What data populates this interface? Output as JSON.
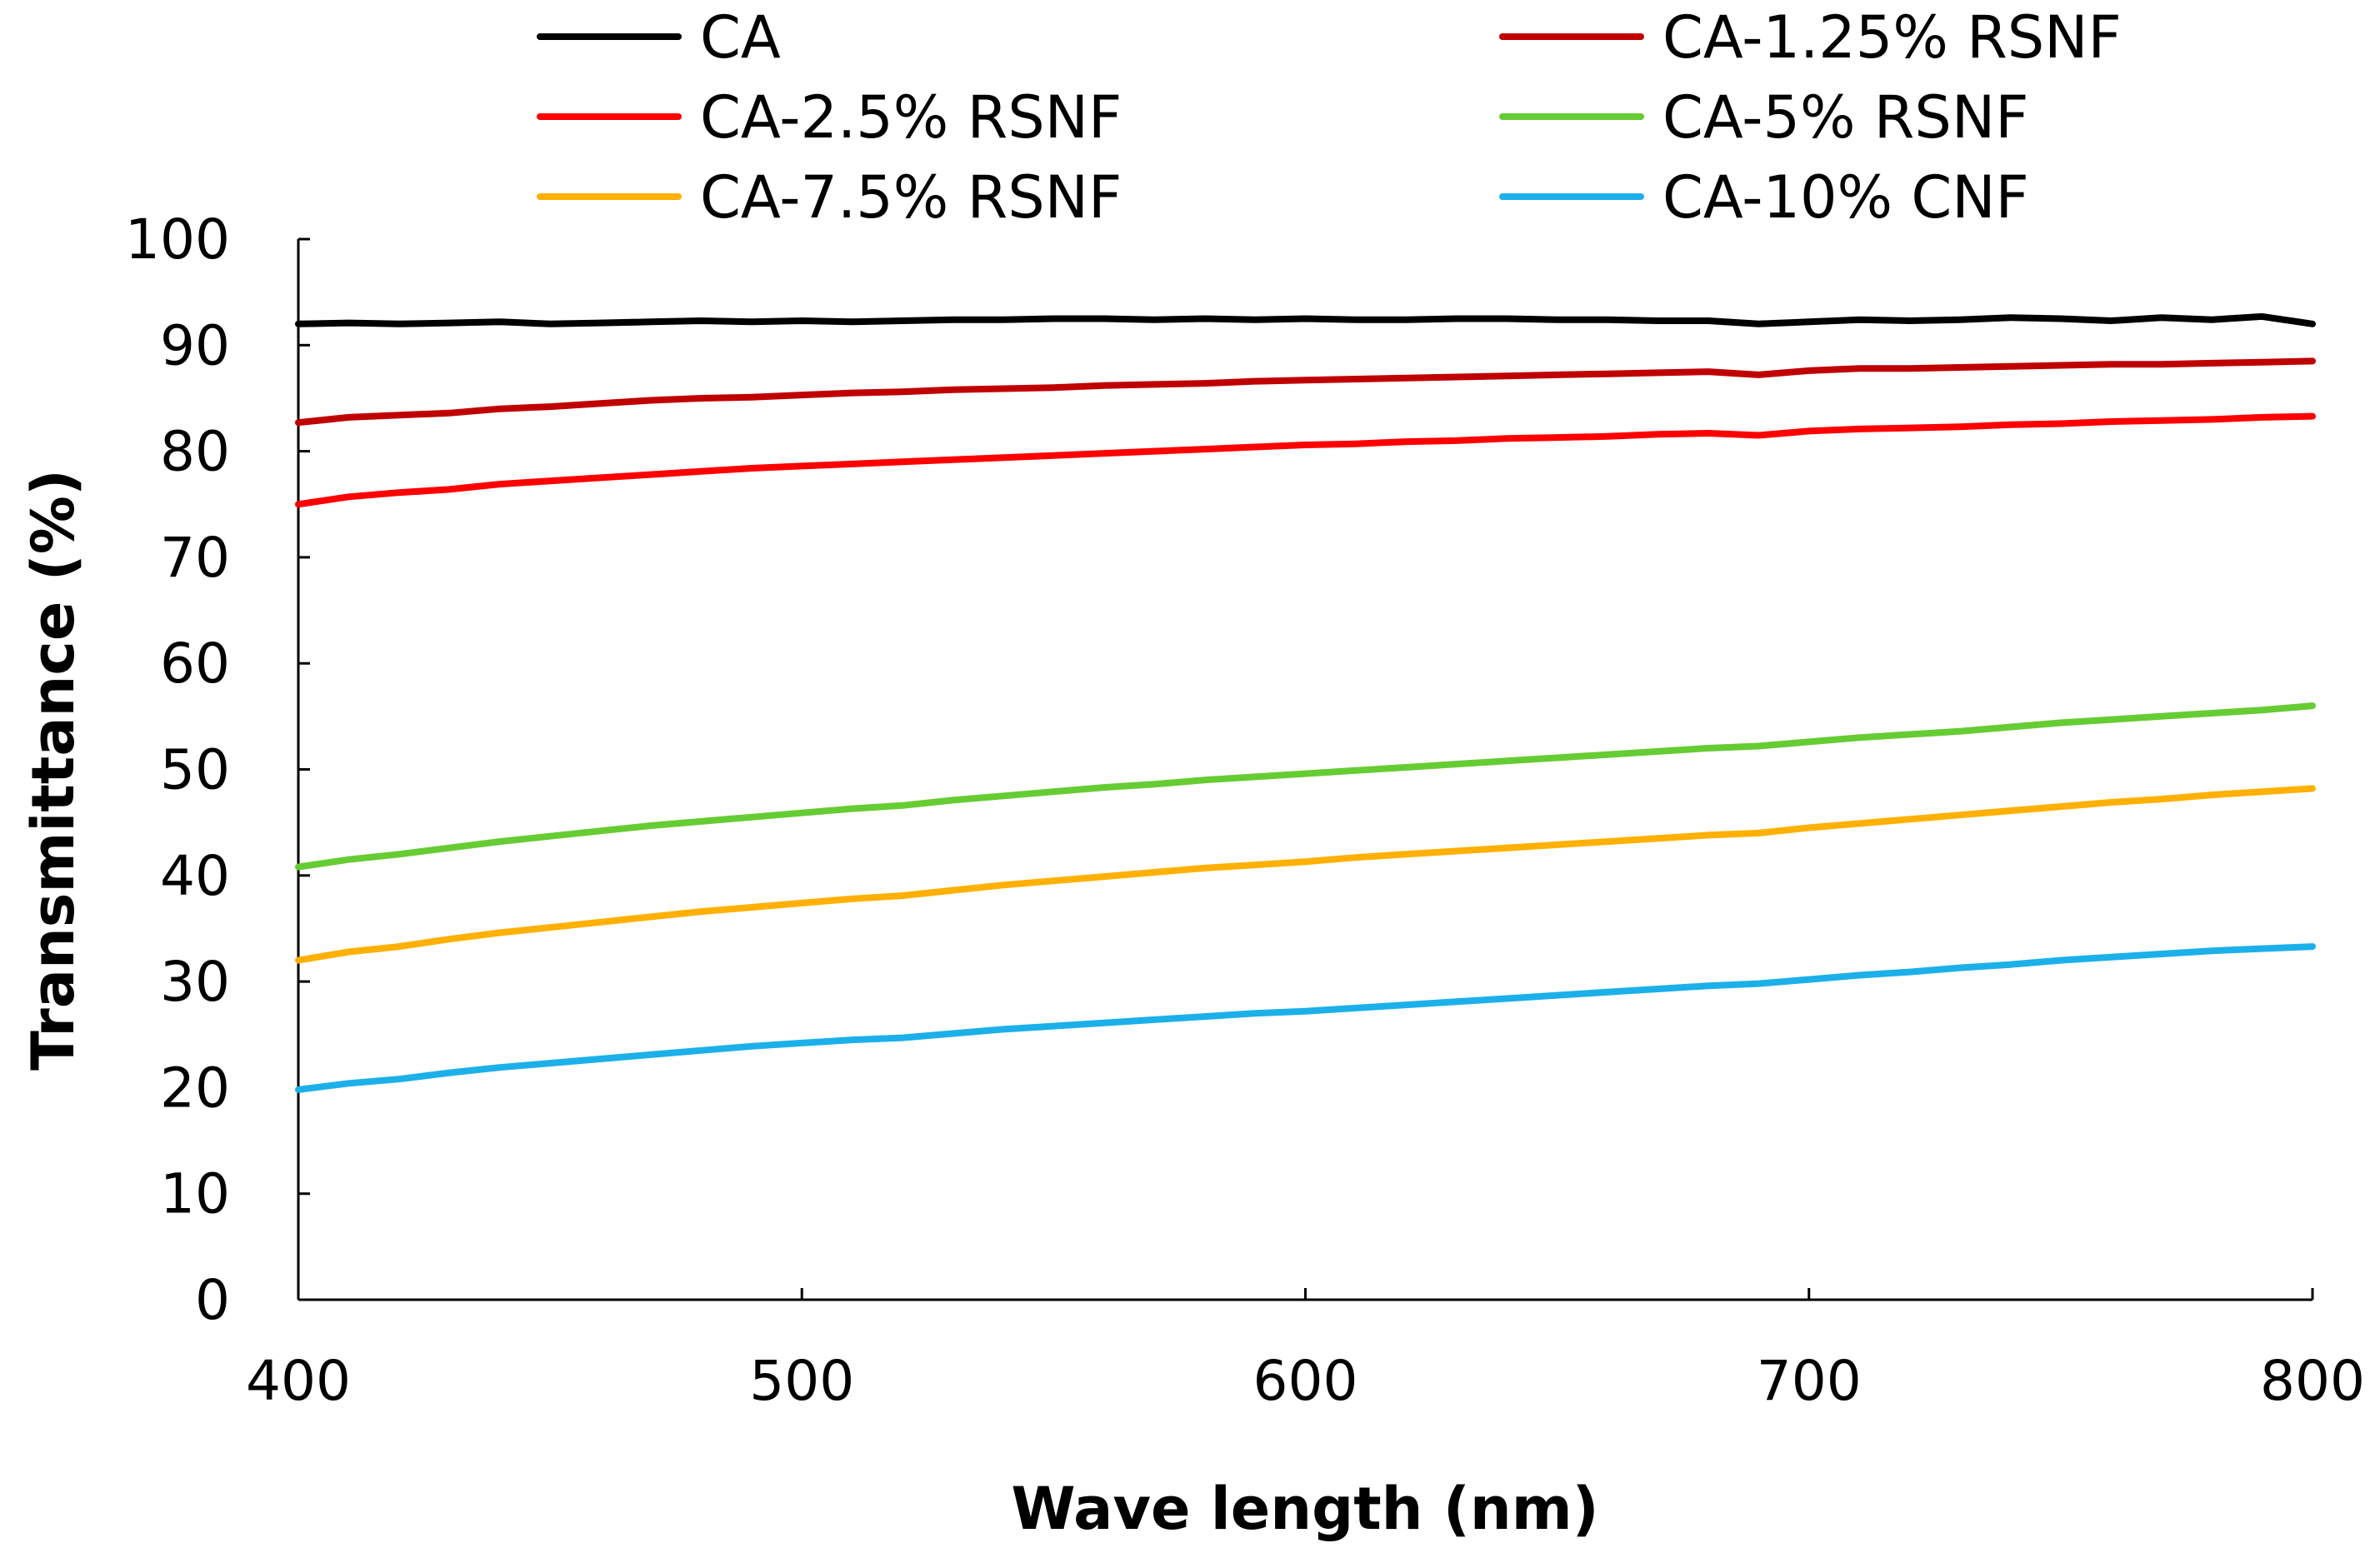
{
  "chart_data": {
    "type": "line",
    "title": "",
    "xlabel": "Wave length (nm)",
    "ylabel": "Transmittance (%)",
    "xlim": [
      400,
      800
    ],
    "ylim": [
      0,
      100
    ],
    "xticks": [
      400,
      500,
      600,
      700,
      800
    ],
    "yticks": [
      0,
      10,
      20,
      30,
      40,
      50,
      60,
      70,
      80,
      90,
      100
    ],
    "grid": false,
    "legend_position": "top",
    "x": [
      400,
      410,
      420,
      430,
      440,
      450,
      460,
      470,
      480,
      490,
      500,
      510,
      520,
      530,
      540,
      550,
      560,
      570,
      580,
      590,
      600,
      610,
      620,
      630,
      640,
      650,
      660,
      670,
      680,
      690,
      700,
      710,
      720,
      730,
      740,
      750,
      760,
      770,
      780,
      790,
      800
    ],
    "series": [
      {
        "name": "CA",
        "color": "#000000",
        "values": [
          92.0,
          92.1,
          92.0,
          92.1,
          92.2,
          92.0,
          92.1,
          92.2,
          92.3,
          92.2,
          92.3,
          92.2,
          92.3,
          92.4,
          92.4,
          92.5,
          92.5,
          92.4,
          92.5,
          92.4,
          92.5,
          92.4,
          92.4,
          92.5,
          92.5,
          92.4,
          92.4,
          92.3,
          92.3,
          92.0,
          92.2,
          92.4,
          92.3,
          92.4,
          92.6,
          92.5,
          92.3,
          92.6,
          92.4,
          92.7,
          92.0
        ]
      },
      {
        "name": "CA-1.25% RSNF",
        "color": "#c00000",
        "values": [
          82.7,
          83.2,
          83.4,
          83.6,
          84.0,
          84.2,
          84.5,
          84.8,
          85.0,
          85.1,
          85.3,
          85.5,
          85.6,
          85.8,
          85.9,
          86.0,
          86.2,
          86.3,
          86.4,
          86.6,
          86.7,
          86.8,
          86.9,
          87.0,
          87.1,
          87.2,
          87.3,
          87.4,
          87.5,
          87.2,
          87.6,
          87.8,
          87.8,
          87.9,
          88.0,
          88.1,
          88.2,
          88.2,
          88.3,
          88.4,
          88.5
        ]
      },
      {
        "name": "CA-2.5% RSNF",
        "color": "#ff0000",
        "values": [
          75.0,
          75.7,
          76.1,
          76.4,
          76.9,
          77.2,
          77.5,
          77.8,
          78.1,
          78.4,
          78.6,
          78.8,
          79.0,
          79.2,
          79.4,
          79.6,
          79.8,
          80.0,
          80.2,
          80.4,
          80.6,
          80.7,
          80.9,
          81.0,
          81.2,
          81.3,
          81.4,
          81.6,
          81.7,
          81.5,
          81.9,
          82.1,
          82.2,
          82.3,
          82.5,
          82.6,
          82.8,
          82.9,
          83.0,
          83.2,
          83.3
        ]
      },
      {
        "name": "CA-5% RSNF",
        "color": "#66cc33",
        "values": [
          40.8,
          41.5,
          42.0,
          42.6,
          43.2,
          43.7,
          44.2,
          44.7,
          45.1,
          45.5,
          45.9,
          46.3,
          46.6,
          47.1,
          47.5,
          47.9,
          48.3,
          48.6,
          49.0,
          49.3,
          49.6,
          49.9,
          50.2,
          50.5,
          50.8,
          51.1,
          51.4,
          51.7,
          52.0,
          52.2,
          52.6,
          53.0,
          53.3,
          53.6,
          54.0,
          54.4,
          54.7,
          55.0,
          55.3,
          55.6,
          56.0
        ]
      },
      {
        "name": "CA-7.5% RSNF",
        "color": "#ffb000",
        "values": [
          32.0,
          32.8,
          33.3,
          34.0,
          34.6,
          35.1,
          35.6,
          36.1,
          36.6,
          37.0,
          37.4,
          37.8,
          38.1,
          38.6,
          39.1,
          39.5,
          39.9,
          40.3,
          40.7,
          41.0,
          41.3,
          41.7,
          42.0,
          42.3,
          42.6,
          42.9,
          43.2,
          43.5,
          43.8,
          44.0,
          44.5,
          44.9,
          45.3,
          45.7,
          46.1,
          46.5,
          46.9,
          47.2,
          47.6,
          47.9,
          48.2
        ]
      },
      {
        "name": "CA-10% CNF",
        "color": "#1cb0ea",
        "values": [
          19.8,
          20.4,
          20.8,
          21.4,
          21.9,
          22.3,
          22.7,
          23.1,
          23.5,
          23.9,
          24.2,
          24.5,
          24.7,
          25.1,
          25.5,
          25.8,
          26.1,
          26.4,
          26.7,
          27.0,
          27.2,
          27.5,
          27.8,
          28.1,
          28.4,
          28.7,
          29.0,
          29.3,
          29.6,
          29.8,
          30.2,
          30.6,
          30.9,
          31.3,
          31.6,
          32.0,
          32.3,
          32.6,
          32.9,
          33.1,
          33.3
        ]
      }
    ]
  }
}
